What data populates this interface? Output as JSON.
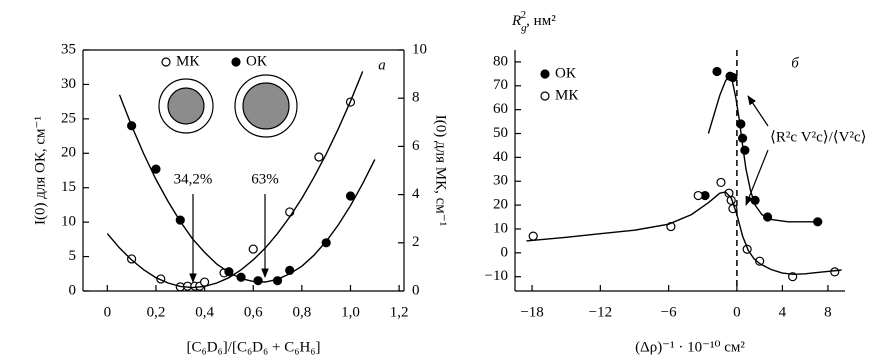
{
  "chart_data": [
    {
      "type": "scatter",
      "xlabel": "[C₆D₆]/[C₆D₆ + C₆H₆]",
      "ylabel": "I(0) для ОК, см⁻¹",
      "y2label": "I(0) для МК, см⁻¹",
      "xlim": [
        -0.1,
        1.22
      ],
      "xticks": [
        0,
        {
          "value": 0.2,
          "label": "0,2"
        },
        {
          "value": 0.4,
          "label": "0,4"
        },
        {
          "value": 0.6,
          "label": "0,6"
        },
        {
          "value": 0.8,
          "label": "0,8"
        },
        {
          "value": 1.0,
          "label": "1,0"
        },
        {
          "value": 1.2,
          "label": "1,2"
        }
      ],
      "ylim": [
        0,
        35
      ],
      "yticks": [
        0,
        5,
        10,
        15,
        20,
        25,
        30,
        35
      ],
      "y2lim": [
        0,
        10
      ],
      "y2ticks": [
        0,
        2,
        4,
        6,
        8,
        10
      ],
      "legend": "upper center",
      "series": [
        {
          "name": "МК",
          "marker": "open",
          "axis": "y2",
          "color": "#000000",
          "x": [
            0.1,
            0.22,
            0.3,
            0.33,
            0.36,
            0.38,
            0.4,
            0.48,
            0.6,
            0.75,
            0.87,
            1.0
          ],
          "values": [
            1.33,
            0.5,
            0.17,
            0.2,
            0.2,
            0.2,
            0.37,
            0.75,
            1.74,
            3.28,
            5.56,
            7.84
          ]
        },
        {
          "name": "ОК",
          "marker": "filled",
          "color": "#000000",
          "x": [
            0.1,
            0.2,
            0.3,
            0.5,
            0.55,
            0.62,
            0.7,
            0.75,
            0.9,
            1.0
          ],
          "values": [
            24,
            17.7,
            10.3,
            2.8,
            2.0,
            1.5,
            1.5,
            3.0,
            7.0,
            13.8
          ]
        },
        {
          "marker": "line",
          "axis": "y2",
          "color": "#000000",
          "x": [
            0,
            0.05,
            0.1,
            0.15,
            0.2,
            0.25,
            0.3,
            0.35,
            0.4,
            0.45,
            0.5,
            0.55,
            0.6,
            0.65,
            0.7,
            0.75,
            0.8,
            0.85,
            0.9,
            0.95,
            1.0,
            1.05
          ],
          "values": [
            2.38,
            1.79,
            1.29,
            0.88,
            0.55,
            0.33,
            0.19,
            0.14,
            0.19,
            0.33,
            0.55,
            0.88,
            1.29,
            1.79,
            2.38,
            3.07,
            3.85,
            4.72,
            5.68,
            6.73,
            7.87,
            9.11
          ]
        },
        {
          "marker": "line",
          "color": "#000000",
          "x": [
            0.05,
            0.1,
            0.15,
            0.2,
            0.25,
            0.3,
            0.35,
            0.4,
            0.45,
            0.5,
            0.55,
            0.6,
            0.65,
            0.7,
            0.75,
            0.8,
            0.85,
            0.9,
            0.95,
            1.0,
            1.05,
            1.1
          ],
          "values": [
            28.5,
            24.0,
            19.9,
            16.2,
            13.0,
            10.1,
            7.6,
            5.6,
            3.9,
            2.7,
            1.8,
            1.4,
            1.3,
            1.7,
            2.5,
            3.6,
            5.2,
            7.2,
            9.6,
            12.4,
            15.6,
            19.1
          ]
        }
      ],
      "annotations": [
        "34,2%",
        "63%",
        "а"
      ]
    },
    {
      "type": "scatter",
      "xlabel": "(Δρ)⁻¹ · 10⁻¹⁰ см²",
      "ylabel": {
        "main": "R",
        "sub": "g",
        "sup": "2",
        "rest": ", нм²"
      },
      "xlim": [
        -19.5,
        9.5
      ],
      "xticks": [
        {
          "value": -18,
          "label": "−18"
        },
        {
          "value": -12,
          "label": "−12"
        },
        {
          "value": -6,
          "label": "−6"
        },
        0,
        4,
        8
      ],
      "ylim": [
        -16,
        85
      ],
      "yticks": [
        {
          "value": -10,
          "label": "−10"
        },
        0,
        10,
        20,
        30,
        40,
        50,
        60,
        70,
        80
      ],
      "refline_x": 0,
      "legend": "upper left",
      "series": [
        {
          "name": "ОК",
          "marker": "filled",
          "color": "#000000",
          "x": [
            -2.8,
            -1.75,
            -0.6,
            -0.35,
            0.35,
            0.5,
            0.7,
            1.6,
            2.7,
            7.1
          ],
          "values": [
            24,
            76,
            74,
            73.5,
            54,
            48,
            43,
            22,
            15,
            13
          ]
        },
        {
          "name": "МК",
          "marker": "open",
          "color": "#000000",
          "x": [
            -17.9,
            -5.8,
            -3.4,
            -1.4,
            -0.7,
            -0.5,
            -0.35,
            0.9,
            2.0,
            4.9,
            8.6
          ],
          "values": [
            7,
            11,
            24,
            29.5,
            25,
            22,
            18.5,
            1.5,
            -3.5,
            -10,
            -8
          ]
        },
        {
          "marker": "line",
          "color": "#000000",
          "x": [
            -2.5,
            -2,
            -1.5,
            -1,
            -0.7,
            -0.4,
            -0.1,
            0.2,
            0.5,
            0.8,
            1.2,
            1.6,
            2.2,
            3,
            4.5,
            6,
            7.5
          ],
          "values": [
            50,
            58,
            66,
            72,
            74,
            72,
            65,
            56,
            45,
            35,
            26,
            20,
            16,
            14,
            13,
            13,
            13
          ]
        },
        {
          "marker": "line",
          "color": "#000000",
          "x": [
            -18.5,
            -15,
            -12,
            -9,
            -6,
            -4,
            -2.5,
            -1.5,
            -1,
            -0.5,
            0,
            0.5,
            1,
            1.5,
            2,
            3,
            4,
            5,
            6,
            7,
            8,
            9.2
          ],
          "values": [
            5,
            6.5,
            8,
            9.5,
            12,
            16,
            21,
            25,
            25.5,
            23,
            16,
            7,
            1,
            -2.5,
            -4.5,
            -7,
            -8.5,
            -9,
            -8.8,
            -8.3,
            -7.8,
            -7.2
          ]
        }
      ],
      "annotations": [
        "б",
        "⟨R²с V²с⟩/⟨V²с⟩"
      ]
    }
  ]
}
